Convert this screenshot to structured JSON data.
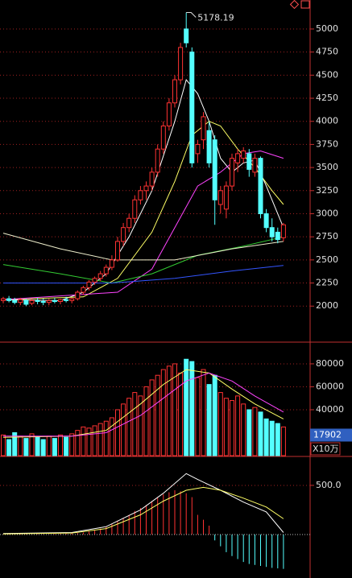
{
  "chart_data": {
    "type": "candlestick",
    "up_color": "#ff3232",
    "down_color": "#54ffff",
    "open": [
      2060,
      2080,
      2060,
      2040,
      2060,
      2030,
      2060,
      2050,
      2040,
      2060,
      2050,
      2070,
      2060,
      2080,
      2150,
      2200,
      2260,
      2300,
      2350,
      2420,
      2500,
      2700,
      2850,
      2950,
      3150,
      3250,
      3300,
      3450,
      3700,
      3950,
      4200,
      4450,
      5000,
      4750,
      3650,
      3800,
      3900,
      3800,
      3100,
      3050,
      3300,
      3550,
      3600,
      3650,
      3450,
      3600,
      3000,
      2850,
      2800,
      2740
    ],
    "high": [
      2100,
      2110,
      2090,
      2090,
      2080,
      2080,
      2090,
      2080,
      2080,
      2090,
      2080,
      2100,
      2090,
      2170,
      2220,
      2280,
      2320,
      2380,
      2450,
      2550,
      2750,
      2900,
      3000,
      3200,
      3300,
      3350,
      3500,
      3750,
      4000,
      4250,
      4500,
      4850,
      5178.19,
      4800,
      3800,
      4100,
      4000,
      3850,
      3300,
      3350,
      3650,
      3700,
      3720,
      3700,
      3650,
      3620,
      3050,
      2950,
      2850,
      2900
    ],
    "low": [
      2030,
      2040,
      2020,
      2010,
      2000,
      2010,
      2020,
      2010,
      2010,
      2030,
      2020,
      2040,
      2030,
      2060,
      2120,
      2170,
      2230,
      2270,
      2320,
      2390,
      2480,
      2650,
      2800,
      2900,
      3100,
      3150,
      3250,
      3400,
      3650,
      3900,
      4150,
      4400,
      4800,
      3500,
      3550,
      3700,
      3500,
      2880,
      3000,
      2950,
      3250,
      3450,
      3550,
      3400,
      3400,
      2950,
      2800,
      2700,
      2680,
      2700
    ],
    "close": [
      2080,
      2060,
      2040,
      2070,
      2020,
      2060,
      2050,
      2040,
      2060,
      2050,
      2070,
      2060,
      2080,
      2150,
      2200,
      2260,
      2300,
      2350,
      2420,
      2500,
      2700,
      2850,
      2950,
      3150,
      3250,
      3300,
      3450,
      3700,
      3950,
      4200,
      4450,
      4800,
      4850,
      3550,
      3750,
      4050,
      3550,
      3150,
      3250,
      3300,
      3600,
      3650,
      3680,
      3480,
      3600,
      3000,
      2850,
      2750,
      2720,
      2880
    ],
    "ma_lines": [
      {
        "color": "#ffffff",
        "x": [
          0,
          10,
          14,
          18,
          22,
          26,
          30,
          32,
          34,
          36,
          38,
          40,
          42,
          44,
          46,
          49
        ],
        "values": [
          2070,
          2060,
          2150,
          2350,
          2750,
          3250,
          4000,
          4450,
          4300,
          4000,
          3600,
          3450,
          3550,
          3580,
          3300,
          2850
        ]
      },
      {
        "color": "#ffff66",
        "x": [
          0,
          14,
          20,
          26,
          30,
          33,
          36,
          38,
          41,
          44,
          47,
          49
        ],
        "values": [
          2070,
          2100,
          2300,
          2800,
          3350,
          3850,
          4000,
          3950,
          3700,
          3500,
          3250,
          3100
        ]
      },
      {
        "color": "#ff44ff",
        "x": [
          0,
          20,
          26,
          30,
          34,
          38,
          42,
          45,
          49
        ],
        "values": [
          2070,
          2150,
          2400,
          2850,
          3300,
          3450,
          3650,
          3680,
          3600
        ]
      },
      {
        "color": "#33cc33",
        "x": [
          0,
          10,
          19,
          26,
          34,
          42,
          49
        ],
        "values": [
          2450,
          2350,
          2250,
          2350,
          2550,
          2650,
          2750
        ]
      },
      {
        "color": "#3355ff",
        "x": [
          0,
          19,
          30,
          40,
          49
        ],
        "values": [
          2250,
          2250,
          2300,
          2380,
          2440
        ]
      },
      {
        "color": "#eeeecc",
        "x": [
          0,
          10,
          19,
          30,
          40,
          49
        ],
        "values": [
          2790,
          2620,
          2500,
          2500,
          2620,
          2700
        ]
      }
    ],
    "ylim": [
      1610,
      5270
    ],
    "yticks": [
      2000,
      2250,
      2500,
      2750,
      3000,
      3250,
      3500,
      3750,
      4000,
      4250,
      4500,
      4750,
      5000
    ],
    "volume": [
      18000,
      14000,
      20000,
      17000,
      15000,
      19000,
      16000,
      14000,
      17000,
      15000,
      18000,
      16000,
      19000,
      22000,
      25000,
      24000,
      26000,
      28000,
      30000,
      33000,
      40000,
      45000,
      50000,
      55000,
      52000,
      60000,
      66000,
      70000,
      75000,
      78000,
      80000,
      72000,
      84000,
      82000,
      68000,
      75000,
      62000,
      70000,
      55000,
      50000,
      48000,
      52000,
      45000,
      40000,
      42000,
      38000,
      32000,
      30000,
      28000,
      25000
    ],
    "volume_lines": [
      {
        "color": "#ffff66",
        "x": [
          0,
          12,
          18,
          24,
          28,
          32,
          36,
          40,
          44,
          49
        ],
        "values": [
          16000,
          17000,
          22000,
          45000,
          62000,
          75000,
          72000,
          58000,
          45000,
          32000
        ]
      },
      {
        "color": "#ff44ff",
        "x": [
          0,
          12,
          18,
          24,
          28,
          32,
          36,
          40,
          44,
          49
        ],
        "values": [
          17000,
          17000,
          20000,
          35000,
          50000,
          65000,
          72000,
          65000,
          52000,
          38000
        ]
      }
    ],
    "volume_ylim": [
      0,
      96800
    ],
    "volume_yticks": [
      40000,
      60000,
      80000
    ],
    "current_volume": 17902,
    "volume_unit": "X10万",
    "macd": [
      5,
      4,
      3,
      4,
      3,
      5,
      4,
      3,
      5,
      6,
      8,
      10,
      12,
      15,
      20,
      30,
      40,
      60,
      80,
      110,
      140,
      170,
      200,
      240,
      270,
      300,
      340,
      380,
      410,
      430,
      450,
      440,
      420,
      380,
      200,
      150,
      90,
      -60,
      -120,
      -180,
      -220,
      -250,
      -280,
      -300,
      -310,
      -320,
      -330,
      -340,
      -345,
      -350
    ],
    "dif": {
      "color": "#ffffff",
      "x": [
        0,
        12,
        18,
        24,
        28,
        32,
        34,
        38,
        42,
        46,
        49
      ],
      "values": [
        10,
        20,
        80,
        250,
        420,
        620,
        560,
        450,
        330,
        230,
        20
      ]
    },
    "dea": {
      "color": "#ffff66",
      "x": [
        0,
        12,
        18,
        24,
        28,
        32,
        35,
        38,
        42,
        46,
        49
      ],
      "values": [
        5,
        15,
        60,
        200,
        340,
        450,
        480,
        450,
        370,
        280,
        160
      ]
    },
    "macd_ylim": [
      -443,
      770
    ],
    "macd_yticks": [
      {
        "value": 500,
        "label": "500.0"
      }
    ]
  }
}
